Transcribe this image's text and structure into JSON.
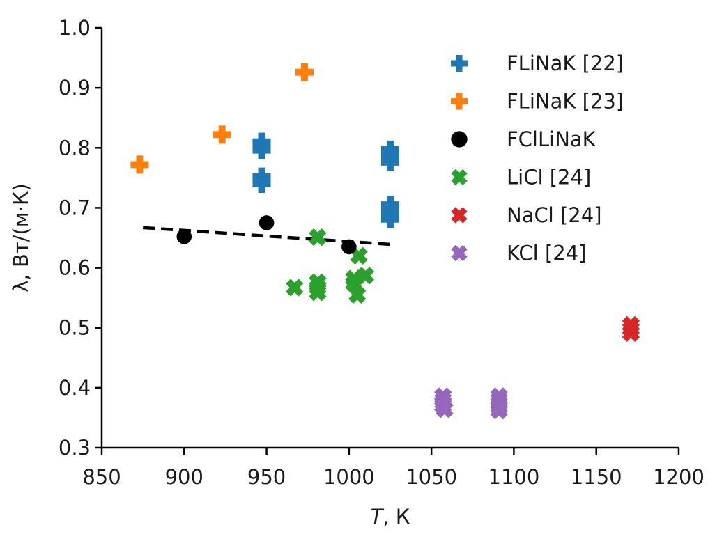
{
  "chart_data": {
    "type": "scatter",
    "title": "",
    "xlabel_italic": "T",
    "xlabel_rest": ", К",
    "ylabel": "λ, Вт/(м·К)",
    "xlim": [
      850,
      1200
    ],
    "ylim": [
      0.3,
      1.0
    ],
    "xticks": [
      850,
      900,
      950,
      1000,
      1050,
      1100,
      1150,
      1200
    ],
    "yticks": [
      0.3,
      0.4,
      0.5,
      0.6,
      0.7,
      0.8,
      0.9,
      1.0
    ],
    "xtick_labels": [
      "850",
      "900",
      "950",
      "1000",
      "1050",
      "1100",
      "1150",
      "1200"
    ],
    "ytick_labels": [
      "0.3",
      "0.4",
      "0.5",
      "0.6",
      "0.7",
      "0.8",
      "0.9",
      "1.0"
    ],
    "grid": false,
    "legend_position": "top-right",
    "series": [
      {
        "name": "FLiNaK [22]",
        "marker": "plus",
        "color": "#1f77b4",
        "points": [
          [
            947,
            0.81
          ],
          [
            947,
            0.803
          ],
          [
            947,
            0.796
          ],
          [
            947,
            0.752
          ],
          [
            947,
            0.746
          ],
          [
            947,
            0.74
          ],
          [
            1025,
            0.797
          ],
          [
            1025,
            0.79
          ],
          [
            1025,
            0.783
          ],
          [
            1025,
            0.776
          ],
          [
            1025,
            0.705
          ],
          [
            1025,
            0.697
          ],
          [
            1025,
            0.689
          ],
          [
            1025,
            0.681
          ]
        ]
      },
      {
        "name": "FLiNaK [23]",
        "marker": "plus",
        "color": "#ff7f0e",
        "points": [
          [
            873,
            0.772
          ],
          [
            923,
            0.822
          ],
          [
            973,
            0.926
          ]
        ]
      },
      {
        "name": "FClLiNaK",
        "marker": "circle",
        "color": "#000000",
        "points": [
          [
            900,
            0.652
          ],
          [
            950,
            0.675
          ],
          [
            1000,
            0.635
          ]
        ]
      },
      {
        "name": "LiCl [24]",
        "marker": "x",
        "color": "#2ca02c",
        "points": [
          [
            967,
            0.567
          ],
          [
            981,
            0.651
          ],
          [
            981,
            0.576
          ],
          [
            981,
            0.567
          ],
          [
            981,
            0.559
          ],
          [
            1006,
            0.62
          ],
          [
            1003,
            0.582
          ],
          [
            1010,
            0.587
          ],
          [
            1003,
            0.574
          ],
          [
            1005,
            0.555
          ]
        ]
      },
      {
        "name": "NaCl [24]",
        "marker": "x",
        "color": "#d62728",
        "points": [
          [
            1171,
            0.505
          ],
          [
            1171,
            0.498
          ],
          [
            1171,
            0.491
          ]
        ]
      },
      {
        "name": "KCl [24]",
        "marker": "x",
        "color": "#9467bd",
        "points": [
          [
            1057,
            0.386
          ],
          [
            1057,
            0.38
          ],
          [
            1057,
            0.375
          ],
          [
            1057,
            0.37
          ],
          [
            1058,
            0.364
          ],
          [
            1091,
            0.386
          ],
          [
            1091,
            0.38
          ],
          [
            1091,
            0.374
          ],
          [
            1091,
            0.368
          ],
          [
            1091,
            0.362
          ]
        ]
      }
    ],
    "fit_line": {
      "name": "FClLiNaK fit",
      "style": "dashed",
      "color": "#000000",
      "x": [
        875,
        1025
      ],
      "y": [
        0.667,
        0.639
      ]
    }
  }
}
